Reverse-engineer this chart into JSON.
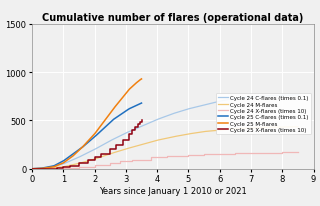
{
  "title": "Cumulative number of flares (operational data)",
  "xlabel": "Years since January 1 2010 or 2021",
  "ylim": [
    0,
    1500
  ],
  "xlim": [
    0,
    9
  ],
  "yticks": [
    0,
    500,
    1000,
    1500
  ],
  "xticks": [
    0,
    1,
    2,
    3,
    4,
    5,
    6,
    7,
    8,
    9
  ],
  "legend_entries": [
    "Cycle 24 C-flares (times 0.1)",
    "Cycle 24 M-flares",
    "Cycle 24 X-flares (times 10)",
    "Cycle 25 C-flares (times 0.1)",
    "Cycle 25 M-flares",
    "Cycle 25 X-flares (times 10)"
  ],
  "colors": {
    "c24_C": "#a8c8e8",
    "c24_M": "#f0c878",
    "c24_X": "#f0b8b8",
    "c25_C": "#2070c0",
    "c25_M": "#f08010",
    "c25_X": "#900010"
  },
  "background_color": "#f0f0f0",
  "grid_color": "#ffffff",
  "title_fontsize": 7,
  "label_fontsize": 6,
  "tick_fontsize": 6,
  "legend_fontsize": 4.0
}
